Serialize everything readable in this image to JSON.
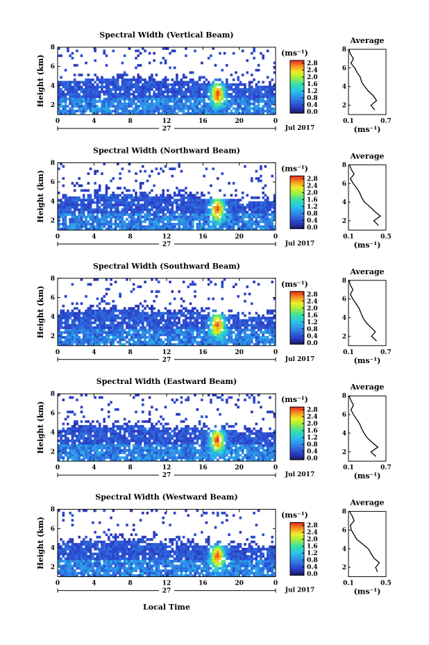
{
  "figure": {
    "xlabel": "Local Time",
    "time_x_ticks": [
      "0",
      "4",
      "8",
      "12",
      "16",
      "20",
      "0"
    ],
    "day_label": "27",
    "date_label": "Jul 2017",
    "height_y_label": "Height (km)",
    "height_ticks": [
      "2",
      "4",
      "6",
      "8"
    ],
    "colorbar_unit": "(ms⁻¹)",
    "colorbar_ticks": [
      "0.0",
      "0.4",
      "0.8",
      "1.2",
      "1.6",
      "2.0",
      "2.4",
      "2.8"
    ],
    "avg_title": "Average",
    "avg_xlabel": "(ms⁻¹)",
    "avg_yticks": [
      "2",
      "4",
      "6",
      "8"
    ]
  },
  "chart_data": [
    {
      "type": "heatmap",
      "title": "Spectral Width (Vertical Beam)",
      "xrange": [
        0,
        24
      ],
      "yrange": [
        1,
        8
      ],
      "cbar_range": [
        0,
        3.0
      ],
      "avg_xticks": [
        "0.1",
        "0.7"
      ],
      "avg_xlim": [
        0.1,
        0.7
      ],
      "avg_profile": {
        "height": [
          1.5,
          2,
          2.5,
          3,
          3.5,
          4,
          4.5,
          5,
          5.5,
          6,
          6.5,
          7,
          7.5,
          8
        ],
        "width": [
          0.52,
          0.46,
          0.55,
          0.5,
          0.42,
          0.36,
          0.31,
          0.29,
          0.24,
          0.2,
          0.14,
          0.18,
          0.13,
          0.11
        ]
      }
    },
    {
      "type": "heatmap",
      "title": "Spectral Width (Northward Beam)",
      "xrange": [
        0,
        24
      ],
      "yrange": [
        1,
        8
      ],
      "cbar_range": [
        0,
        3.0
      ],
      "avg_xticks": [
        "0.1",
        "0.5"
      ],
      "avg_xlim": [
        0.1,
        0.5
      ],
      "avg_profile": {
        "height": [
          1.5,
          2,
          2.5,
          3,
          3.5,
          4,
          4.5,
          5,
          5.5,
          6,
          6.5,
          7,
          7.5,
          8
        ],
        "width": [
          0.42,
          0.37,
          0.44,
          0.38,
          0.33,
          0.27,
          0.24,
          0.22,
          0.19,
          0.15,
          0.12,
          0.16,
          0.13,
          0.11
        ]
      }
    },
    {
      "type": "heatmap",
      "title": "Spectral Width (Southward Beam)",
      "xrange": [
        0,
        24
      ],
      "yrange": [
        1,
        8
      ],
      "cbar_range": [
        0,
        3.0
      ],
      "avg_xticks": [
        "0.1",
        "0.7"
      ],
      "avg_xlim": [
        0.1,
        0.7
      ],
      "avg_profile": {
        "height": [
          1.5,
          2,
          2.5,
          3,
          3.5,
          4,
          4.5,
          5,
          5.5,
          6,
          6.5,
          7,
          7.5,
          8
        ],
        "width": [
          0.55,
          0.47,
          0.53,
          0.45,
          0.38,
          0.33,
          0.3,
          0.27,
          0.22,
          0.17,
          0.13,
          0.17,
          0.13,
          0.11
        ]
      }
    },
    {
      "type": "heatmap",
      "title": "Spectral Width (Eastward Beam)",
      "xrange": [
        0,
        24
      ],
      "yrange": [
        1,
        8
      ],
      "cbar_range": [
        0,
        3.0
      ],
      "avg_xticks": [
        "0.1",
        "0.7"
      ],
      "avg_xlim": [
        0.1,
        0.7
      ],
      "avg_profile": {
        "height": [
          1.5,
          2,
          2.5,
          3,
          3.5,
          4,
          4.5,
          5,
          5.5,
          6,
          6.5,
          7,
          7.5,
          8
        ],
        "width": [
          0.54,
          0.46,
          0.57,
          0.48,
          0.4,
          0.35,
          0.31,
          0.28,
          0.23,
          0.18,
          0.14,
          0.18,
          0.14,
          0.11
        ]
      }
    },
    {
      "type": "heatmap",
      "title": "Spectral Width (Westward Beam)",
      "xrange": [
        0,
        24
      ],
      "yrange": [
        1,
        8
      ],
      "cbar_range": [
        0,
        3.0
      ],
      "avg_xticks": [
        "0.1",
        "0.5"
      ],
      "avg_xlim": [
        0.1,
        0.5
      ],
      "avg_profile": {
        "height": [
          1.5,
          2,
          2.5,
          3,
          3.5,
          4,
          4.5,
          5,
          5.5,
          6,
          6.5,
          7,
          7.5,
          8
        ],
        "width": [
          0.41,
          0.39,
          0.43,
          0.37,
          0.34,
          0.31,
          0.25,
          0.19,
          0.16,
          0.13,
          0.12,
          0.16,
          0.14,
          0.11
        ]
      }
    }
  ]
}
